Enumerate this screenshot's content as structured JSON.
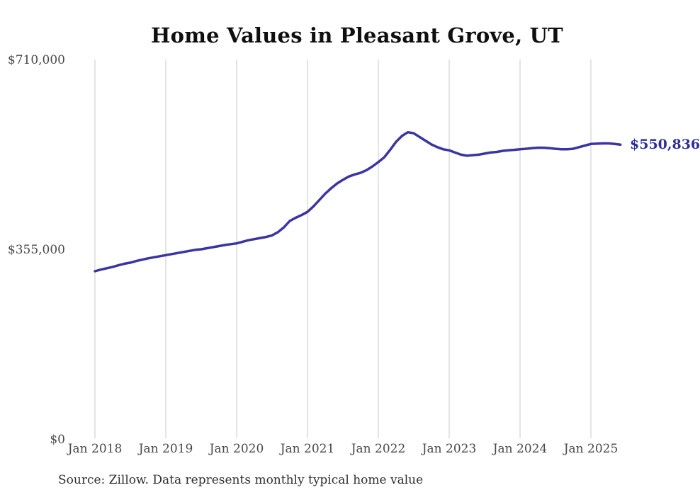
{
  "title": "Home Values in Pleasant Grove, UT",
  "source_note": "Source: Zillow. Data represents monthly typical home value",
  "colors": {
    "background": "#ffffff",
    "title": "#0f0f0f",
    "line": "#3a35a1",
    "end_label": "#2e2e9a",
    "grid": "#c8c8c8",
    "axis_labels": "#494949",
    "source": "#2e2e2e"
  },
  "chart_data": {
    "type": "line",
    "title": "Home Values in Pleasant Grove, UT",
    "series_name": "Monthly typical home value",
    "xlabel": "",
    "ylabel": "",
    "grid": "vertical-only",
    "legend": "none",
    "ylim": [
      0,
      710000
    ],
    "yticks": [
      {
        "value": 0,
        "label": "$0"
      },
      {
        "value": 355000,
        "label": "$355,000"
      },
      {
        "value": 710000,
        "label": "$710,000"
      }
    ],
    "xticks": [
      {
        "month_index": 0,
        "label": "Jan 2018"
      },
      {
        "month_index": 12,
        "label": "Jan 2019"
      },
      {
        "month_index": 24,
        "label": "Jan 2020"
      },
      {
        "month_index": 36,
        "label": "Jan 2021"
      },
      {
        "month_index": 48,
        "label": "Jan 2022"
      },
      {
        "month_index": 60,
        "label": "Jan 2023"
      },
      {
        "month_index": 72,
        "label": "Jan 2024"
      },
      {
        "month_index": 84,
        "label": "Jan 2025"
      }
    ],
    "latest_value": 550836,
    "latest_value_label": "$550,836",
    "x": [
      "2018-01",
      "2018-02",
      "2018-03",
      "2018-04",
      "2018-05",
      "2018-06",
      "2018-07",
      "2018-08",
      "2018-09",
      "2018-10",
      "2018-11",
      "2018-12",
      "2019-01",
      "2019-02",
      "2019-03",
      "2019-04",
      "2019-05",
      "2019-06",
      "2019-07",
      "2019-08",
      "2019-09",
      "2019-10",
      "2019-11",
      "2019-12",
      "2020-01",
      "2020-02",
      "2020-03",
      "2020-04",
      "2020-05",
      "2020-06",
      "2020-07",
      "2020-08",
      "2020-09",
      "2020-10",
      "2020-11",
      "2020-12",
      "2021-01",
      "2021-02",
      "2021-03",
      "2021-04",
      "2021-05",
      "2021-06",
      "2021-07",
      "2021-08",
      "2021-09",
      "2021-10",
      "2021-11",
      "2021-12",
      "2022-01",
      "2022-02",
      "2022-03",
      "2022-04",
      "2022-05",
      "2022-06",
      "2022-07",
      "2022-08",
      "2022-09",
      "2022-10",
      "2022-11",
      "2022-12",
      "2023-01",
      "2023-02",
      "2023-03",
      "2023-04",
      "2023-05",
      "2023-06",
      "2023-07",
      "2023-08",
      "2023-09",
      "2023-10",
      "2023-11",
      "2023-12",
      "2024-01",
      "2024-02",
      "2024-03",
      "2024-04",
      "2024-05",
      "2024-06",
      "2024-07",
      "2024-08",
      "2024-09",
      "2024-10",
      "2024-11",
      "2024-12",
      "2025-01",
      "2025-02",
      "2025-03",
      "2025-04",
      "2025-05",
      "2025-06"
    ],
    "values": [
      314000,
      317000,
      319500,
      322000,
      325000,
      328000,
      330000,
      333000,
      335500,
      338000,
      340000,
      342000,
      344000,
      346000,
      348000,
      350000,
      352000,
      354000,
      355000,
      357000,
      359000,
      361000,
      363000,
      364500,
      366000,
      369000,
      372000,
      374000,
      376000,
      378000,
      381000,
      387000,
      396000,
      408000,
      414000,
      419000,
      425000,
      435000,
      447000,
      459000,
      469000,
      478000,
      485000,
      491000,
      495000,
      498000,
      503000,
      510000,
      518000,
      527000,
      541000,
      556000,
      567000,
      574000,
      572000,
      565000,
      558000,
      551000,
      546000,
      542000,
      540000,
      536000,
      532000,
      530000,
      531000,
      532000,
      534000,
      536000,
      537000,
      539000,
      540000,
      541000,
      542000,
      543000,
      544000,
      545000,
      545000,
      544000,
      543000,
      542000,
      542000,
      543000,
      546000,
      549000,
      552000,
      552500,
      553000,
      553000,
      552000,
      550836
    ]
  }
}
